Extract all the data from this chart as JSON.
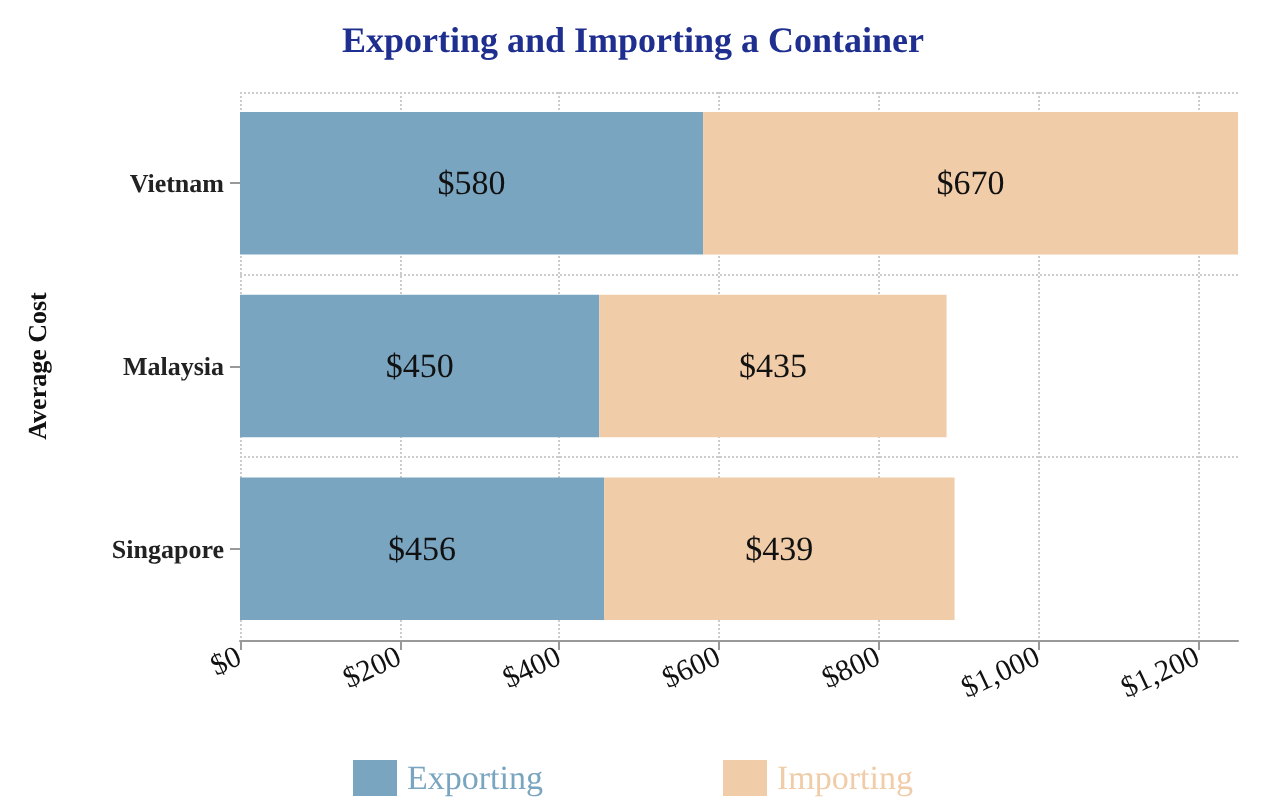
{
  "chart_data": {
    "type": "bar",
    "title": "Exporting and Importing a Container",
    "ylabel": "Average Cost",
    "orientation": "horizontal",
    "stacked": true,
    "categories": [
      "Vietnam",
      "Malaysia",
      "Singapore"
    ],
    "series": [
      {
        "name": "Exporting",
        "color": "#79a5c0",
        "values": [
          580,
          450,
          456
        ],
        "value_labels": [
          "$580",
          "$450",
          "$456"
        ]
      },
      {
        "name": "Importing",
        "color": "#f0cca8",
        "values": [
          670,
          435,
          439
        ],
        "value_labels": [
          "$670",
          "$435",
          "$439"
        ]
      }
    ],
    "xlim": [
      0,
      1250
    ],
    "xticks": [
      {
        "value": 0,
        "label": "$0"
      },
      {
        "value": 200,
        "label": "$200"
      },
      {
        "value": 400,
        "label": "$400"
      },
      {
        "value": 600,
        "label": "$600"
      },
      {
        "value": 800,
        "label": "$800"
      },
      {
        "value": 1000,
        "label": "$1,000"
      },
      {
        "value": 1200,
        "label": "$1,200"
      }
    ],
    "grid": true,
    "legend": "bottom"
  }
}
